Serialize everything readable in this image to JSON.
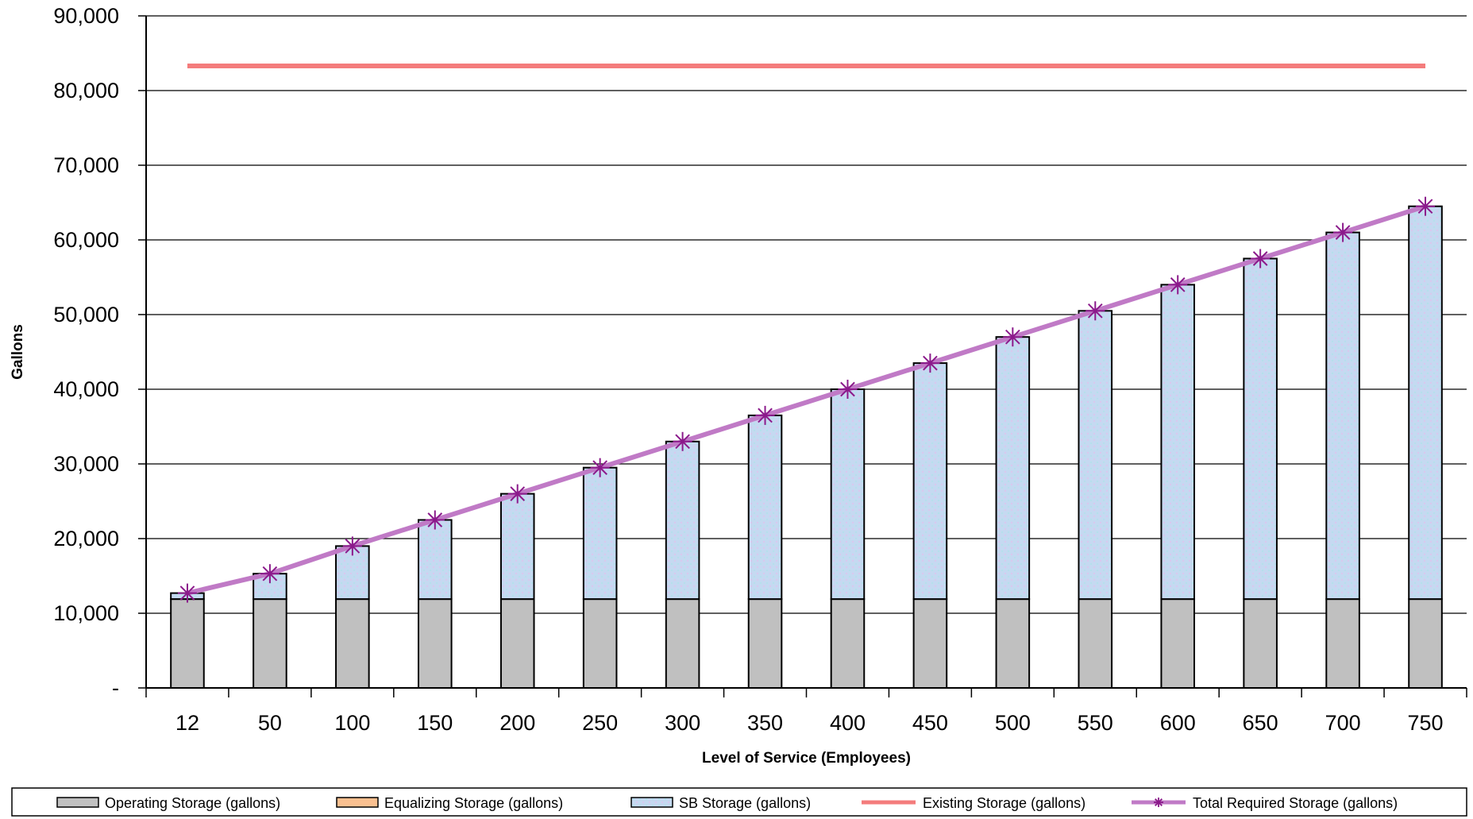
{
  "chart_data": {
    "type": "bar",
    "title": "",
    "xlabel": "Level of Service (Employees)",
    "ylabel": "Gallons",
    "ylim": [
      0,
      90000
    ],
    "ytick_values": [
      0,
      10000,
      20000,
      30000,
      40000,
      50000,
      60000,
      70000,
      80000,
      90000
    ],
    "ytick_labels": [
      "-",
      "10,000",
      "20,000",
      "30,000",
      "40,000",
      "50,000",
      "60,000",
      "70,000",
      "80,000",
      "90,000"
    ],
    "grid": true,
    "legend_position": "bottom",
    "categories": [
      "12",
      "50",
      "100",
      "150",
      "200",
      "250",
      "300",
      "350",
      "400",
      "450",
      "500",
      "550",
      "600",
      "650",
      "700",
      "750"
    ],
    "series": [
      {
        "name": "Operating Storage (gallons)",
        "kind": "stacked-bar",
        "color": "#c0c0c0",
        "values": [
          11900,
          11900,
          11900,
          11900,
          11900,
          11900,
          11900,
          11900,
          11900,
          11900,
          11900,
          11900,
          11900,
          11900,
          11900,
          11900
        ]
      },
      {
        "name": "Equalizing Storage (gallons)",
        "kind": "stacked-bar",
        "color": "#fac090",
        "values": [
          0,
          0,
          0,
          0,
          0,
          0,
          0,
          0,
          0,
          0,
          0,
          0,
          0,
          0,
          0,
          0
        ]
      },
      {
        "name": "SB Storage (gallons)",
        "kind": "stacked-bar",
        "color": "#c5d9f1",
        "values": [
          800,
          3400,
          7100,
          10600,
          14100,
          17600,
          21100,
          24600,
          28100,
          31600,
          35100,
          38600,
          42100,
          45600,
          49100,
          52600
        ]
      },
      {
        "name": "Existing Storage (gallons)",
        "kind": "line",
        "color": "#f47c7c",
        "values": [
          83300,
          83300,
          83300,
          83300,
          83300,
          83300,
          83300,
          83300,
          83300,
          83300,
          83300,
          83300,
          83300,
          83300,
          83300,
          83300
        ]
      },
      {
        "name": "Total Required Storage (gallons)",
        "kind": "line-marker",
        "color": "#c07ac6",
        "marker_color": "#8b1a8b",
        "values": [
          12700,
          15300,
          19000,
          22500,
          26000,
          29500,
          33000,
          36500,
          40000,
          43500,
          47000,
          50500,
          54000,
          57500,
          61000,
          64500
        ]
      }
    ]
  }
}
